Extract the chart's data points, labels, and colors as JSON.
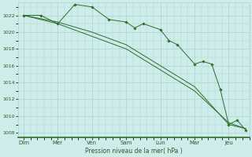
{
  "background_color": "#ceecea",
  "grid_color": "#aad4d0",
  "line_color": "#2d6e2d",
  "marker_color": "#2d6e2d",
  "xlabel": "Pression niveau de la mer( hPa )",
  "ylim": [
    1007.5,
    1023.5
  ],
  "yticks": [
    1008,
    1010,
    1012,
    1014,
    1016,
    1018,
    1020,
    1022
  ],
  "x_labels": [
    "Dim",
    "Mer",
    "Ven",
    "Sam",
    "Lun",
    "Mar",
    "Jeu"
  ],
  "x_tick_pos": [
    0,
    1,
    2,
    3,
    4,
    5,
    6
  ],
  "series1_markers_x": [
    0,
    0.5,
    1,
    1.25,
    1.75,
    2,
    2.5,
    3,
    3.5,
    4,
    4.25,
    4.75,
    5,
    5.25,
    5.5,
    5.75,
    6,
    6.25,
    6.5
  ],
  "jagged_x": [
    0,
    0.5,
    1,
    1.5,
    2,
    2.5,
    3,
    3.25,
    3.5,
    4,
    4.25,
    4.5,
    5,
    5.25,
    5.5,
    5.75,
    6,
    6.25,
    6.5
  ],
  "jagged_y": [
    1022.0,
    1022.0,
    1021.0,
    1023.3,
    1023.0,
    1021.5,
    1021.2,
    1020.5,
    1021.0,
    1020.3,
    1019.0,
    1018.5,
    1016.2,
    1016.5,
    1016.2,
    1013.2,
    1009.0,
    1009.5,
    1008.3
  ],
  "smooth1_x": [
    0,
    1,
    2,
    3,
    4,
    5,
    6,
    6.5
  ],
  "smooth1_y": [
    1022.0,
    1021.0,
    1019.5,
    1018.0,
    1015.5,
    1013.0,
    1009.2,
    1008.5
  ],
  "smooth2_x": [
    0,
    1,
    2,
    3,
    4,
    5,
    6,
    6.5
  ],
  "smooth2_y": [
    1022.0,
    1021.2,
    1020.0,
    1018.5,
    1016.0,
    1013.5,
    1009.0,
    1008.5
  ]
}
